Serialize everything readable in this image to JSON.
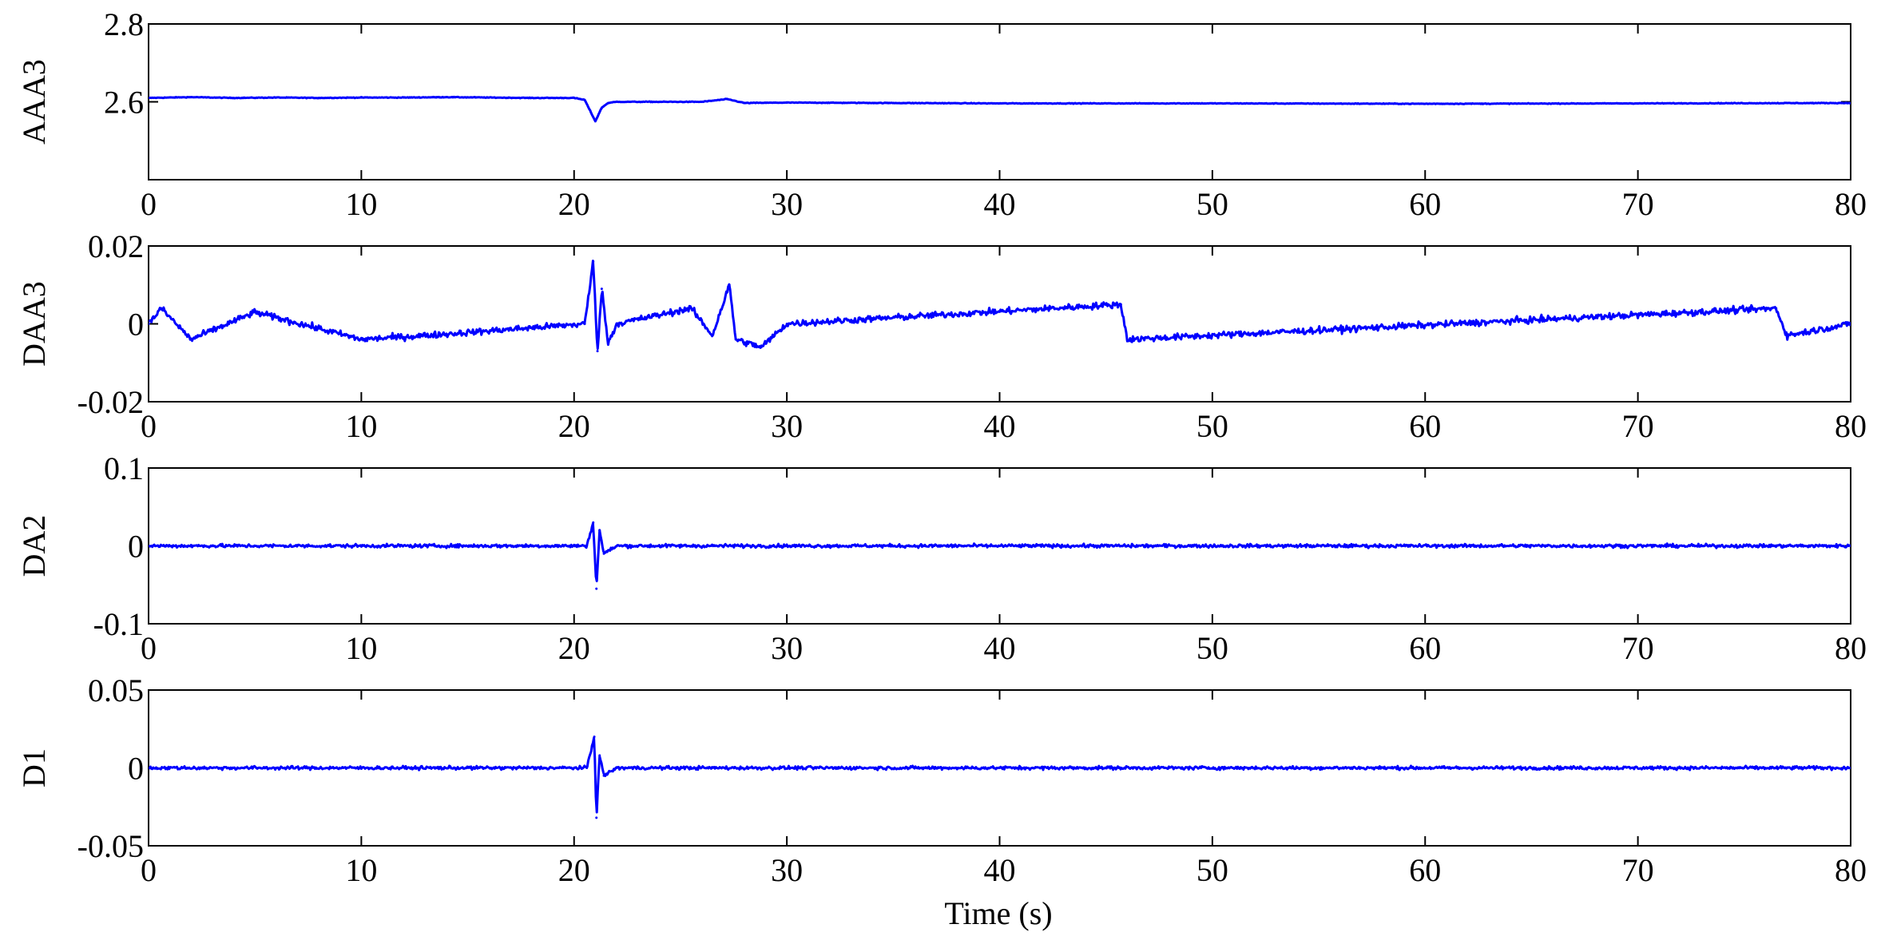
{
  "figure": {
    "xlabel": "Time (s)"
  },
  "chart_data": [
    {
      "type": "line",
      "ylabel": "AAA3",
      "xlim": [
        0,
        80
      ],
      "ylim": [
        2.4,
        2.8
      ],
      "xticks": [
        0,
        10,
        20,
        30,
        40,
        50,
        60,
        70,
        80
      ],
      "yticks": [
        2.6,
        2.8
      ],
      "ytick_labels": [
        "2.6",
        "2.8"
      ],
      "grid": false,
      "series": [
        {
          "color": "#0000ff",
          "x": [
            0,
            2,
            4,
            6,
            8,
            10,
            12,
            14,
            16,
            18,
            20,
            20.5,
            21,
            21.3,
            21.6,
            22,
            24,
            26,
            27.2,
            28,
            30,
            40,
            50,
            60,
            70,
            80
          ],
          "values": [
            2.61,
            2.612,
            2.61,
            2.611,
            2.61,
            2.611,
            2.611,
            2.612,
            2.611,
            2.61,
            2.61,
            2.605,
            2.55,
            2.585,
            2.597,
            2.6,
            2.6,
            2.6,
            2.607,
            2.597,
            2.598,
            2.596,
            2.596,
            2.595,
            2.596,
            2.597
          ]
        }
      ]
    },
    {
      "type": "line",
      "ylabel": "DAA3",
      "xlim": [
        0,
        80
      ],
      "ylim": [
        -0.02,
        0.02
      ],
      "xticks": [
        0,
        10,
        20,
        30,
        40,
        50,
        60,
        70,
        80
      ],
      "yticks": [
        -0.02,
        0,
        0.02
      ],
      "ytick_labels": [
        "-0.02",
        "0",
        "0.02"
      ],
      "grid": false,
      "series": [
        {
          "color": "#0000ff",
          "x": [
            0,
            0.6,
            2,
            5,
            10,
            13,
            20.5,
            20.9,
            21.1,
            21.3,
            21.6,
            22,
            25.5,
            26.5,
            27.3,
            27.6,
            28.8,
            30,
            45.7,
            46,
            76.5,
            77,
            80
          ],
          "values": [
            0,
            0.004,
            -0.004,
            0.003,
            -0.004,
            -0.003,
            0,
            0.016,
            -0.007,
            0.009,
            -0.005,
            0,
            0.004,
            -0.003,
            0.01,
            -0.004,
            -0.006,
            0,
            0.005,
            -0.004,
            0.004,
            -0.003,
            0
          ]
        }
      ]
    },
    {
      "type": "line",
      "ylabel": "DA2",
      "xlim": [
        0,
        80
      ],
      "ylim": [
        -0.1,
        0.1
      ],
      "xticks": [
        0,
        10,
        20,
        30,
        40,
        50,
        60,
        70,
        80
      ],
      "yticks": [
        -0.1,
        0,
        0.1
      ],
      "ytick_labels": [
        "-0.1",
        "0",
        "0.1"
      ],
      "grid": false,
      "series": [
        {
          "color": "#0000ff",
          "x": [
            0,
            20.6,
            20.9,
            21.05,
            21.2,
            21.4,
            22,
            80
          ],
          "values": [
            0,
            0,
            0.03,
            -0.055,
            0.02,
            -0.01,
            0,
            0
          ]
        }
      ]
    },
    {
      "type": "line",
      "ylabel": "D1",
      "xlim": [
        0,
        80
      ],
      "ylim": [
        -0.05,
        0.05
      ],
      "xticks": [
        0,
        10,
        20,
        30,
        40,
        50,
        60,
        70,
        80
      ],
      "yticks": [
        -0.05,
        0,
        0.05
      ],
      "ytick_labels": [
        "-0.05",
        "0",
        "0.05"
      ],
      "grid": false,
      "series": [
        {
          "color": "#0000ff",
          "x": [
            0,
            20.6,
            20.95,
            21.05,
            21.2,
            21.4,
            22,
            80
          ],
          "values": [
            0,
            0,
            0.02,
            -0.032,
            0.008,
            -0.005,
            0,
            0
          ]
        }
      ]
    }
  ]
}
